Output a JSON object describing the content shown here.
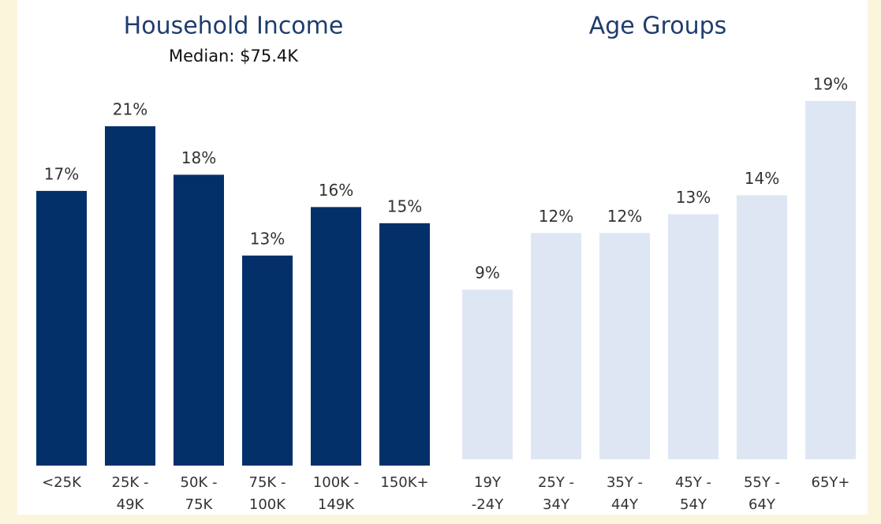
{
  "chart_data": [
    {
      "type": "bar",
      "title": "Household Income",
      "subtitle": "Median: $75.4K",
      "categories": [
        [
          "<25K"
        ],
        [
          "25K -",
          "49K"
        ],
        [
          "50K -",
          "75K"
        ],
        [
          "75K -",
          "100K"
        ],
        [
          "100K -",
          "149K"
        ],
        [
          "150K+"
        ]
      ],
      "values": [
        17,
        21,
        18,
        13,
        16,
        15
      ],
      "value_labels": [
        "17%",
        "21%",
        "18%",
        "13%",
        "16%",
        "15%"
      ],
      "color": "#04306a",
      "ylim": [
        0,
        21
      ]
    },
    {
      "type": "bar",
      "title": "Age Groups",
      "categories": [
        [
          "19Y",
          "-24Y"
        ],
        [
          "25Y -",
          "34Y"
        ],
        [
          "35Y -",
          "44Y"
        ],
        [
          "45Y -",
          "54Y"
        ],
        [
          "55Y -",
          "64Y"
        ],
        [
          "65Y+"
        ]
      ],
      "values": [
        9,
        12,
        12,
        13,
        14,
        19
      ],
      "value_labels": [
        "9%",
        "12%",
        "12%",
        "13%",
        "14%",
        "19%"
      ],
      "color": "#dfe6f3",
      "ylim": [
        0,
        19
      ]
    }
  ]
}
